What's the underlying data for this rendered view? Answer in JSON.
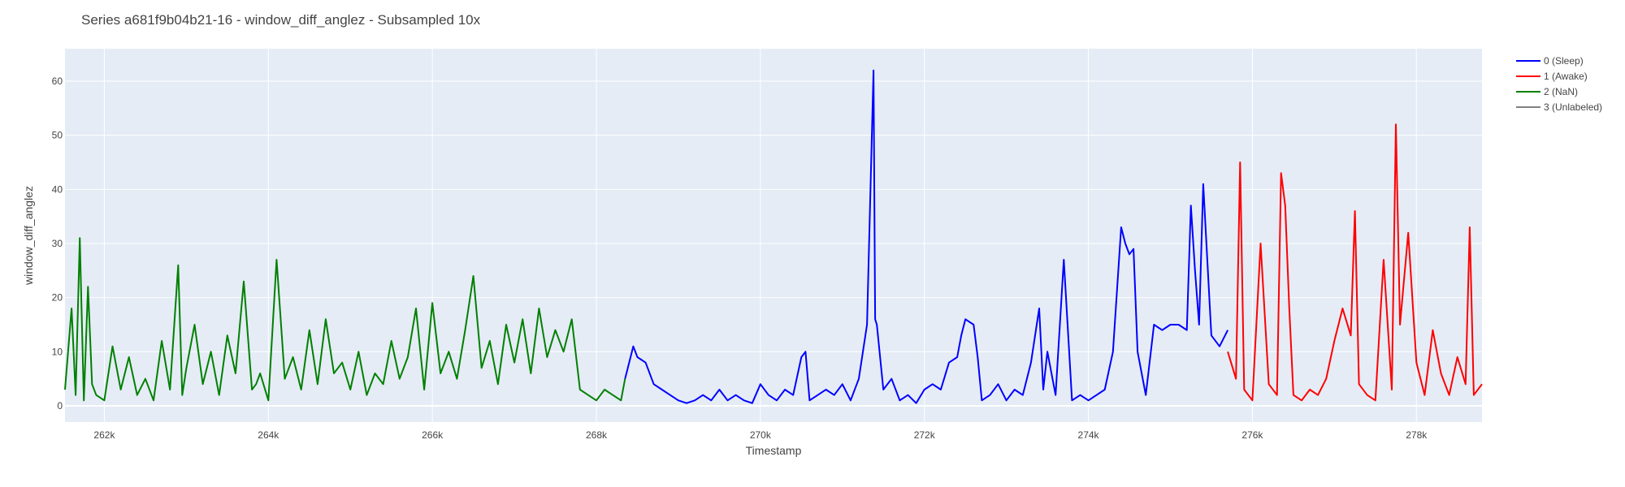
{
  "chart_data": {
    "type": "line",
    "title": "Series a681f9b04b21-16 - window_diff_anglez - Subsampled 10x",
    "xlabel": "Timestamp",
    "ylabel": "window_diff_anglez",
    "xlim": [
      261520,
      278800
    ],
    "ylim": [
      -3,
      66
    ],
    "xticks": [
      262000,
      264000,
      266000,
      268000,
      270000,
      272000,
      274000,
      276000,
      278000
    ],
    "xtick_labels": [
      "262k",
      "264k",
      "266k",
      "268k",
      "270k",
      "272k",
      "274k",
      "276k",
      "278k"
    ],
    "yticks": [
      0,
      10,
      20,
      30,
      40,
      50,
      60
    ],
    "ytick_labels": [
      "0",
      "10",
      "20",
      "30",
      "40",
      "50",
      "60"
    ],
    "grid": true,
    "legend_position": "right",
    "series": [
      {
        "name": "0 (Sleep)",
        "color": "#0000ff",
        "x": [
          268350,
          268450,
          268500,
          268600,
          268700,
          268800,
          268900,
          269000,
          269100,
          269200,
          269300,
          269400,
          269500,
          269600,
          269700,
          269800,
          269900,
          270000,
          270100,
          270200,
          270300,
          270400,
          270500,
          270550,
          270600,
          270700,
          270800,
          270900,
          271000,
          271100,
          271200,
          271300,
          271380,
          271400,
          271420,
          271500,
          271600,
          271700,
          271800,
          271900,
          272000,
          272100,
          272200,
          272300,
          272400,
          272450,
          272500,
          272600,
          272650,
          272700,
          272800,
          272900,
          273000,
          273100,
          273200,
          273300,
          273400,
          273450,
          273500,
          273600,
          273700,
          273800,
          273900,
          274000,
          274100,
          274200,
          274300,
          274400,
          274450,
          274500,
          274550,
          274600,
          274700,
          274800,
          274900,
          275000,
          275100,
          275200,
          275250,
          275300,
          275350,
          275400,
          275500,
          275600,
          275700
        ],
        "y": [
          5,
          11,
          9,
          8,
          4,
          3,
          2,
          1,
          0.5,
          1,
          2,
          1,
          3,
          1,
          2,
          1,
          0.5,
          4,
          2,
          1,
          3,
          2,
          9,
          10,
          1,
          2,
          3,
          2,
          4,
          1,
          5,
          15,
          62,
          16,
          15,
          3,
          5,
          1,
          2,
          0.5,
          3,
          4,
          3,
          8,
          9,
          13,
          16,
          15,
          9,
          1,
          2,
          4,
          1,
          3,
          2,
          8,
          18,
          3,
          10,
          2,
          27,
          1,
          2,
          1,
          2,
          3,
          10,
          33,
          30,
          28,
          29,
          10,
          2,
          15,
          14,
          15,
          15,
          14,
          37,
          25,
          15,
          41,
          13,
          11,
          14
        ]
      },
      {
        "name": "1 (Awake)",
        "color": "#ff0000",
        "x": [
          275700,
          275800,
          275850,
          275900,
          276000,
          276100,
          276200,
          276300,
          276350,
          276400,
          276450,
          276500,
          276600,
          276700,
          276800,
          276900,
          277000,
          277100,
          277200,
          277250,
          277300,
          277400,
          277500,
          277600,
          277700,
          277750,
          277800,
          277900,
          278000,
          278100,
          278200,
          278300,
          278400,
          278500,
          278600,
          278650,
          278700,
          278800
        ],
        "y": [
          10,
          5,
          45,
          3,
          1,
          30,
          4,
          2,
          43,
          37,
          18,
          2,
          1,
          3,
          2,
          5,
          12,
          18,
          13,
          36,
          4,
          2,
          1,
          27,
          3,
          52,
          15,
          32,
          8,
          2,
          14,
          6,
          2,
          9,
          4,
          33,
          2,
          4
        ]
      },
      {
        "name": "2 (NaN)",
        "color": "#008000",
        "x": [
          261520,
          261600,
          261650,
          261700,
          261750,
          261800,
          261850,
          261900,
          262000,
          262100,
          262200,
          262300,
          262400,
          262500,
          262600,
          262700,
          262800,
          262900,
          262950,
          263000,
          263100,
          263200,
          263300,
          263400,
          263500,
          263600,
          263700,
          263800,
          263850,
          263900,
          264000,
          264100,
          264200,
          264300,
          264400,
          264500,
          264600,
          264700,
          264800,
          264900,
          265000,
          265100,
          265200,
          265300,
          265400,
          265500,
          265600,
          265700,
          265800,
          265900,
          266000,
          266100,
          266200,
          266300,
          266400,
          266500,
          266600,
          266700,
          266800,
          266900,
          267000,
          267100,
          267200,
          267300,
          267400,
          267500,
          267600,
          267700,
          267800,
          267900,
          268000,
          268100,
          268200,
          268300,
          268350
        ],
        "y": [
          3,
          18,
          2,
          31,
          1,
          22,
          4,
          2,
          1,
          11,
          3,
          9,
          2,
          5,
          1,
          12,
          3,
          26,
          2,
          7,
          15,
          4,
          10,
          2,
          13,
          6,
          23,
          3,
          4,
          6,
          1,
          27,
          5,
          9,
          3,
          14,
          4,
          16,
          6,
          8,
          3,
          10,
          2,
          6,
          4,
          12,
          5,
          9,
          18,
          3,
          19,
          6,
          10,
          5,
          14,
          24,
          7,
          12,
          4,
          15,
          8,
          16,
          6,
          18,
          9,
          14,
          10,
          16,
          3,
          2,
          1,
          3,
          2,
          1,
          5
        ]
      },
      {
        "name": "3 (Unlabeled)",
        "color": "#808080",
        "x": [],
        "y": []
      }
    ]
  }
}
